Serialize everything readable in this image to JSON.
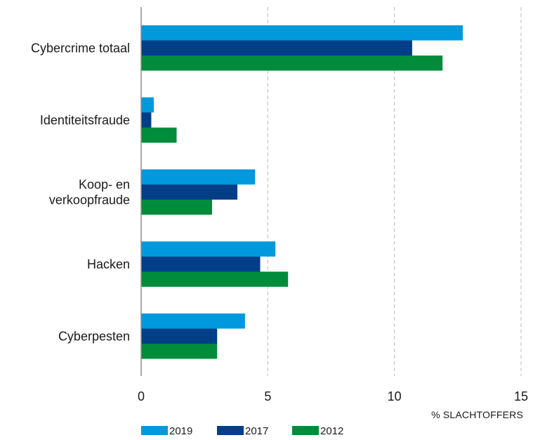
{
  "chart_data": {
    "type": "bar",
    "orientation": "horizontal",
    "categories": [
      "Cybercrime totaal",
      "Identiteitsfraude",
      "Koop- en verkoopfraude",
      "Hacken",
      "Cyberpesten"
    ],
    "category_lines": [
      [
        "Cybercrime totaal"
      ],
      [
        "Identiteitsfraude"
      ],
      [
        "Koop- en",
        "verkoopfraude"
      ],
      [
        "Hacken"
      ],
      [
        "Cyberpesten"
      ]
    ],
    "series": [
      {
        "name": "2019",
        "color": "#0099dc",
        "values": [
          12.7,
          0.5,
          4.5,
          5.3,
          4.1
        ]
      },
      {
        "name": "2017",
        "color": "#003f87",
        "values": [
          10.7,
          0.4,
          3.8,
          4.7,
          3.0
        ]
      },
      {
        "name": "2012",
        "color": "#008c3a",
        "values": [
          11.9,
          1.4,
          2.8,
          5.8,
          3.0
        ]
      }
    ],
    "xlim": [
      0,
      15
    ],
    "xticks": [
      "0",
      "5",
      "10",
      "15"
    ],
    "xlabel": "% SLACHTOFFERS",
    "grid": true,
    "legend_position": "bottom-left"
  }
}
